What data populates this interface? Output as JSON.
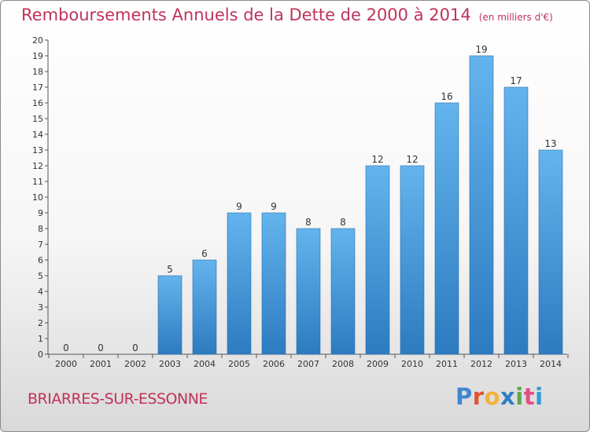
{
  "header": {
    "title": "Remboursements Annuels de la Dette de 2000 à 2014",
    "unit": "(en milliers d'€)"
  },
  "footer": {
    "commune": "BRIARRES-SUR-ESSONNE",
    "logo": "Proxiti"
  },
  "colors": {
    "title": "#c0325a",
    "bar_top": "#63b4ee",
    "bar_bottom": "#2d7bc0"
  },
  "chart_data": {
    "type": "bar",
    "categories": [
      "2000",
      "2001",
      "2002",
      "2003",
      "2004",
      "2005",
      "2006",
      "2007",
      "2008",
      "2009",
      "2010",
      "2011",
      "2012",
      "2013",
      "2014"
    ],
    "values": [
      0,
      0,
      0,
      5,
      6,
      9,
      9,
      8,
      8,
      12,
      12,
      16,
      19,
      17,
      13
    ],
    "ylim": [
      0,
      20
    ],
    "yticks": [
      0,
      1,
      2,
      3,
      4,
      5,
      6,
      7,
      8,
      9,
      10,
      11,
      12,
      13,
      14,
      15,
      16,
      17,
      18,
      19,
      20
    ],
    "grid": false,
    "data_labels": true
  }
}
